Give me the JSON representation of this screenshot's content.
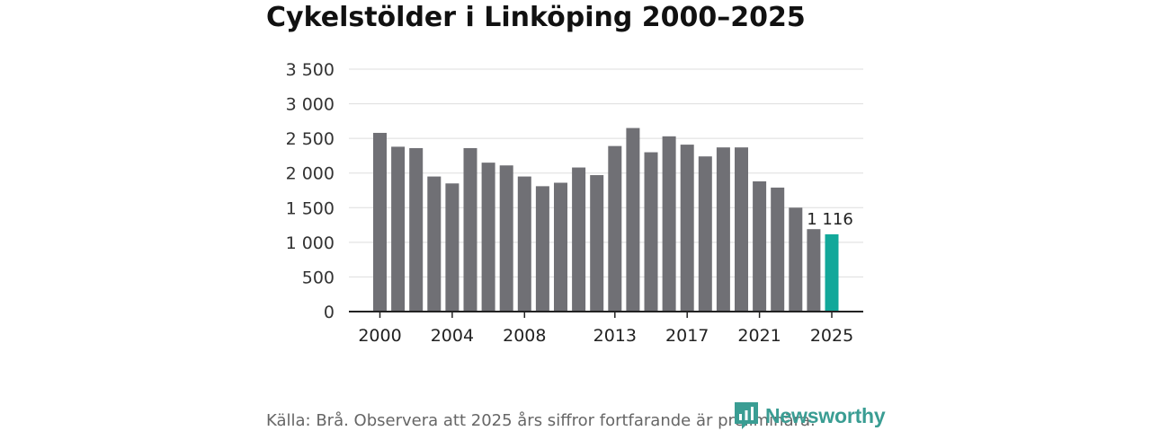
{
  "title": "Cykelstölder i Linköping 2000–2025",
  "source": "Källa: Brå. Observera att 2025 års siffror fortfarande är preliminära.",
  "brand": {
    "name": "Newsworthy",
    "icon": "newsworthy-logo-icon",
    "color": "#3a9d93"
  },
  "colors": {
    "bar": "#707075",
    "highlight": "#12a89a",
    "grid": "#dddddd",
    "axis": "#222222"
  },
  "chart_data": {
    "type": "bar",
    "title": "Cykelstölder i Linköping 2000–2025",
    "xlabel": "",
    "ylabel": "",
    "ylim": [
      0,
      3500
    ],
    "yticks": [
      0,
      500,
      1000,
      1500,
      2000,
      2500,
      3000,
      3500
    ],
    "ytick_labels": [
      "0",
      "500",
      "1 000",
      "1 500",
      "2 000",
      "2 500",
      "3 000",
      "3 500"
    ],
    "xtick_labels": [
      "2000",
      "2004",
      "2008",
      "2013",
      "2017",
      "2021",
      "2025"
    ],
    "grid": true,
    "categories": [
      "2000",
      "2001",
      "2002",
      "2003",
      "2004",
      "2005",
      "2006",
      "2007",
      "2008",
      "2009",
      "2010",
      "2011",
      "2012",
      "2013",
      "2014",
      "2015",
      "2016",
      "2017",
      "2018",
      "2019",
      "2020",
      "2021",
      "2022",
      "2023",
      "2024",
      "2025"
    ],
    "values": [
      2580,
      2380,
      2360,
      1950,
      1850,
      2360,
      2150,
      2110,
      1950,
      1810,
      1860,
      2080,
      1970,
      2390,
      2650,
      2300,
      2530,
      2410,
      2240,
      2370,
      2370,
      1880,
      1790,
      1500,
      1190,
      1116
    ],
    "highlight_index": 25,
    "data_labels": [
      {
        "index": 25,
        "text": "1 116"
      }
    ]
  }
}
